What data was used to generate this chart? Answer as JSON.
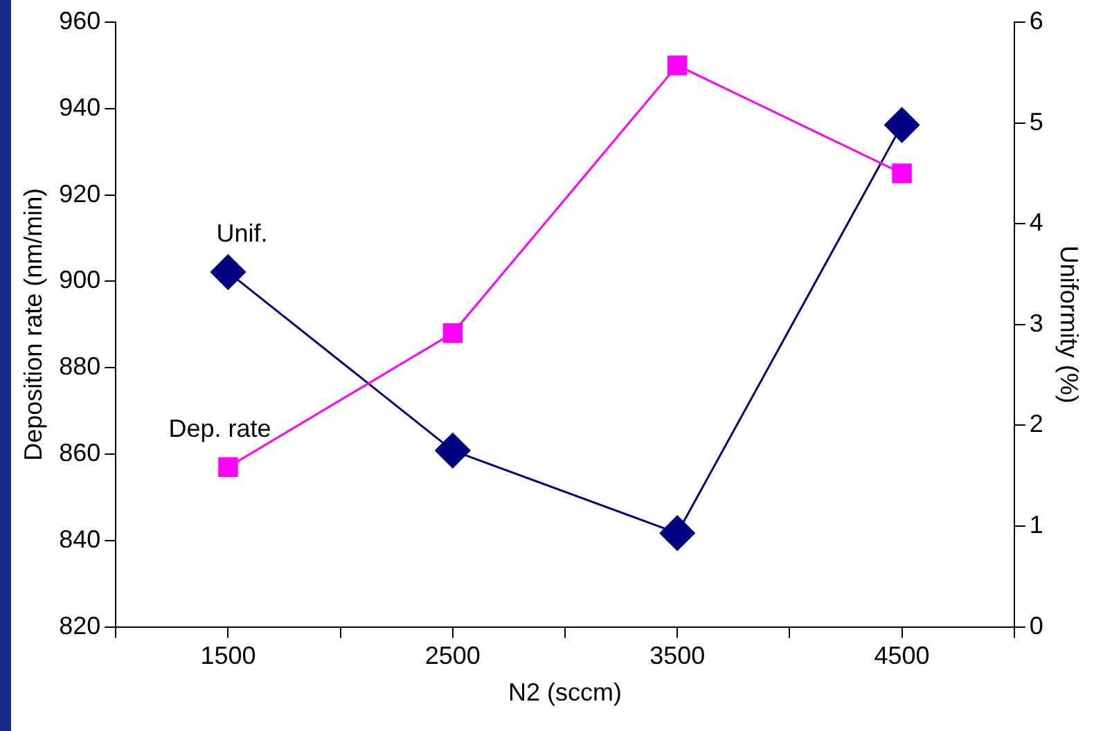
{
  "chart_data": {
    "type": "line",
    "xlabel": "N2 (sccm)",
    "ylabel": "Deposition rate (nm/min)",
    "y2label": "Uniformity (%)",
    "x": [
      1500,
      2500,
      3500,
      4500
    ],
    "series": [
      {
        "name": "Dep. rate",
        "color": "#ff00ff",
        "marker": "square",
        "values": [
          857,
          888,
          950,
          925
        ]
      },
      {
        "name": "Unif.",
        "color": "#000080",
        "marker": "diamond",
        "axis": "y2",
        "values": [
          3.52,
          1.75,
          0.93,
          4.98
        ]
      }
    ],
    "xlim": [
      1000,
      5000
    ],
    "xticks": [
      {
        "value": 1000,
        "label": null
      },
      1500,
      {
        "value": 2000,
        "label": null
      },
      2500,
      {
        "value": 3000,
        "label": null
      },
      3500,
      {
        "value": 4000,
        "label": null
      },
      4500,
      {
        "value": 5000,
        "label": null
      }
    ],
    "ylim": [
      820,
      960
    ],
    "yticks": [
      820,
      840,
      860,
      880,
      900,
      920,
      940,
      960
    ],
    "y2lim": [
      0,
      6
    ],
    "y2ticks": [
      0,
      1,
      2,
      3,
      4,
      5,
      6
    ],
    "grid": false,
    "legend": false,
    "line_style": "solid"
  }
}
